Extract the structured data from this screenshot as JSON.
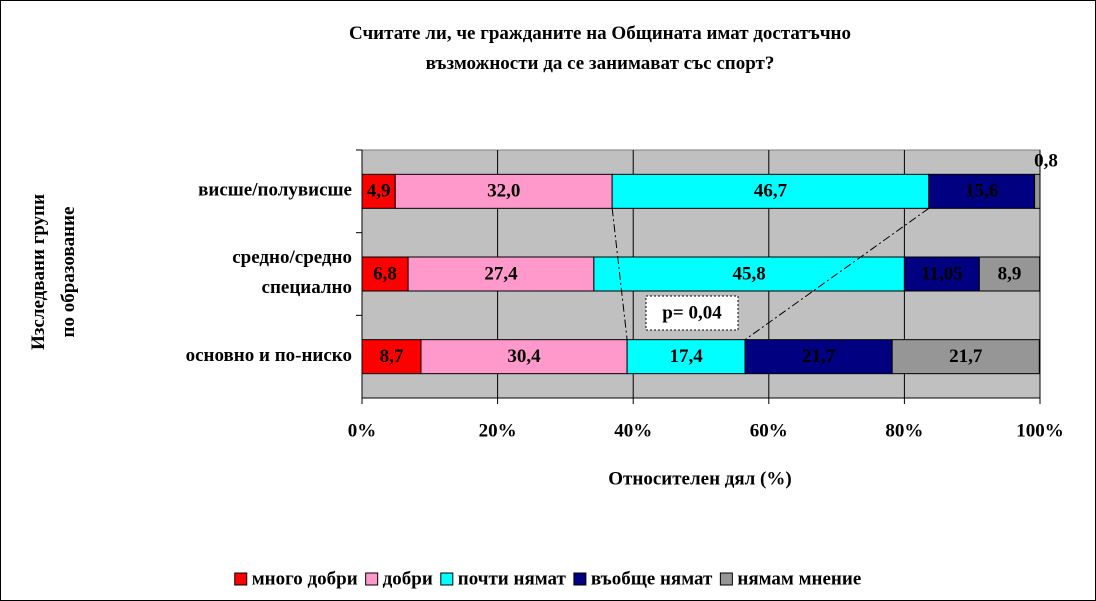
{
  "chart_data": {
    "type": "stacked_barh",
    "title": "Считате ли, че гражданите на Общината имат достатъчно\nвъзможности да се занимават със спорт?",
    "x_label": "Относителен дял (%)",
    "y_label": "Изследвани групи\nпо образование",
    "categories": [
      "висше/полувисше",
      "средно/средно\nспециално",
      "основно и по-ниско"
    ],
    "series": [
      {
        "name": "много добри",
        "color": "#ff0000",
        "values": [
          4.9,
          6.8,
          8.7
        ],
        "value_labels": [
          "4,9",
          "6,8",
          "8,7"
        ]
      },
      {
        "name": "добри",
        "color": "#ff99cc",
        "values": [
          32.0,
          27.4,
          30.4
        ],
        "value_labels": [
          "32,0",
          "27,4",
          "30,4"
        ]
      },
      {
        "name": "почти нямат",
        "color": "#00ffff",
        "values": [
          46.7,
          45.8,
          17.4
        ],
        "value_labels": [
          "46,7",
          "45,8",
          "17,4"
        ]
      },
      {
        "name": "въобще нямат",
        "color": "#000080",
        "values": [
          15.6,
          11.05,
          21.7
        ],
        "value_labels": [
          "15,6",
          "11,05",
          "21,7"
        ]
      },
      {
        "name": "нямам мнение",
        "color": "#969696",
        "values": [
          0.8,
          8.9,
          21.7
        ],
        "value_labels": [
          "0,8",
          "8,9",
          "21,7"
        ]
      }
    ],
    "xlim": [
      0,
      100
    ],
    "xticks": [
      {
        "value": 0,
        "label": "0%"
      },
      {
        "value": 20,
        "label": "20%"
      },
      {
        "value": 40,
        "label": "40%"
      },
      {
        "value": 60,
        "label": "60%"
      },
      {
        "value": 80,
        "label": "80%"
      },
      {
        "value": 100,
        "label": "100%"
      }
    ],
    "grid": true,
    "annotation": "p= 0,04",
    "legend": "bottom"
  }
}
